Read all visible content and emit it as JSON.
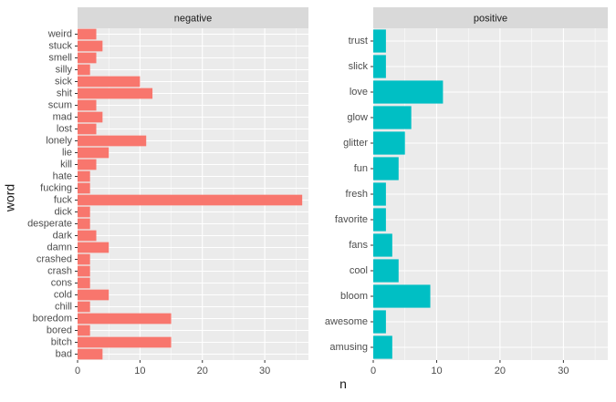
{
  "chart_data": [
    {
      "type": "bar",
      "orientation": "horizontal",
      "panel": "negative",
      "color": "#F8766D",
      "xlim": [
        0,
        37
      ],
      "xticks": [
        0,
        10,
        20,
        30
      ],
      "categories": [
        "weird",
        "stuck",
        "smell",
        "silly",
        "sick",
        "shit",
        "scum",
        "mad",
        "lost",
        "lonely",
        "lie",
        "kill",
        "hate",
        "fucking",
        "fuck",
        "dick",
        "desperate",
        "dark",
        "damn",
        "crashed",
        "crash",
        "cons",
        "cold",
        "chill",
        "boredom",
        "bored",
        "bitch",
        "bad"
      ],
      "values": [
        3,
        4,
        3,
        2,
        10,
        12,
        3,
        4,
        3,
        11,
        5,
        3,
        2,
        2,
        36,
        2,
        2,
        3,
        5,
        2,
        2,
        2,
        5,
        2,
        15,
        2,
        15,
        4
      ]
    },
    {
      "type": "bar",
      "orientation": "horizontal",
      "panel": "positive",
      "color": "#00BFC4",
      "xlim": [
        0,
        37
      ],
      "xticks": [
        0,
        10,
        20,
        30
      ],
      "categories": [
        "trust",
        "slick",
        "love",
        "glow",
        "glitter",
        "fun",
        "fresh",
        "favorite",
        "fans",
        "cool",
        "bloom",
        "awesome",
        "amusing"
      ],
      "values": [
        2,
        2,
        11,
        6,
        5,
        4,
        2,
        2,
        3,
        4,
        9,
        2,
        3
      ]
    }
  ],
  "axes": {
    "ylabel": "word",
    "xlabel": "n"
  },
  "theme": {
    "panel_bg": "#EBEBEB",
    "strip_bg": "#D9D9D9",
    "grid_major": "#FFFFFF",
    "tick_text": "#4D4D4D",
    "title_text": "#1A1A1A"
  }
}
